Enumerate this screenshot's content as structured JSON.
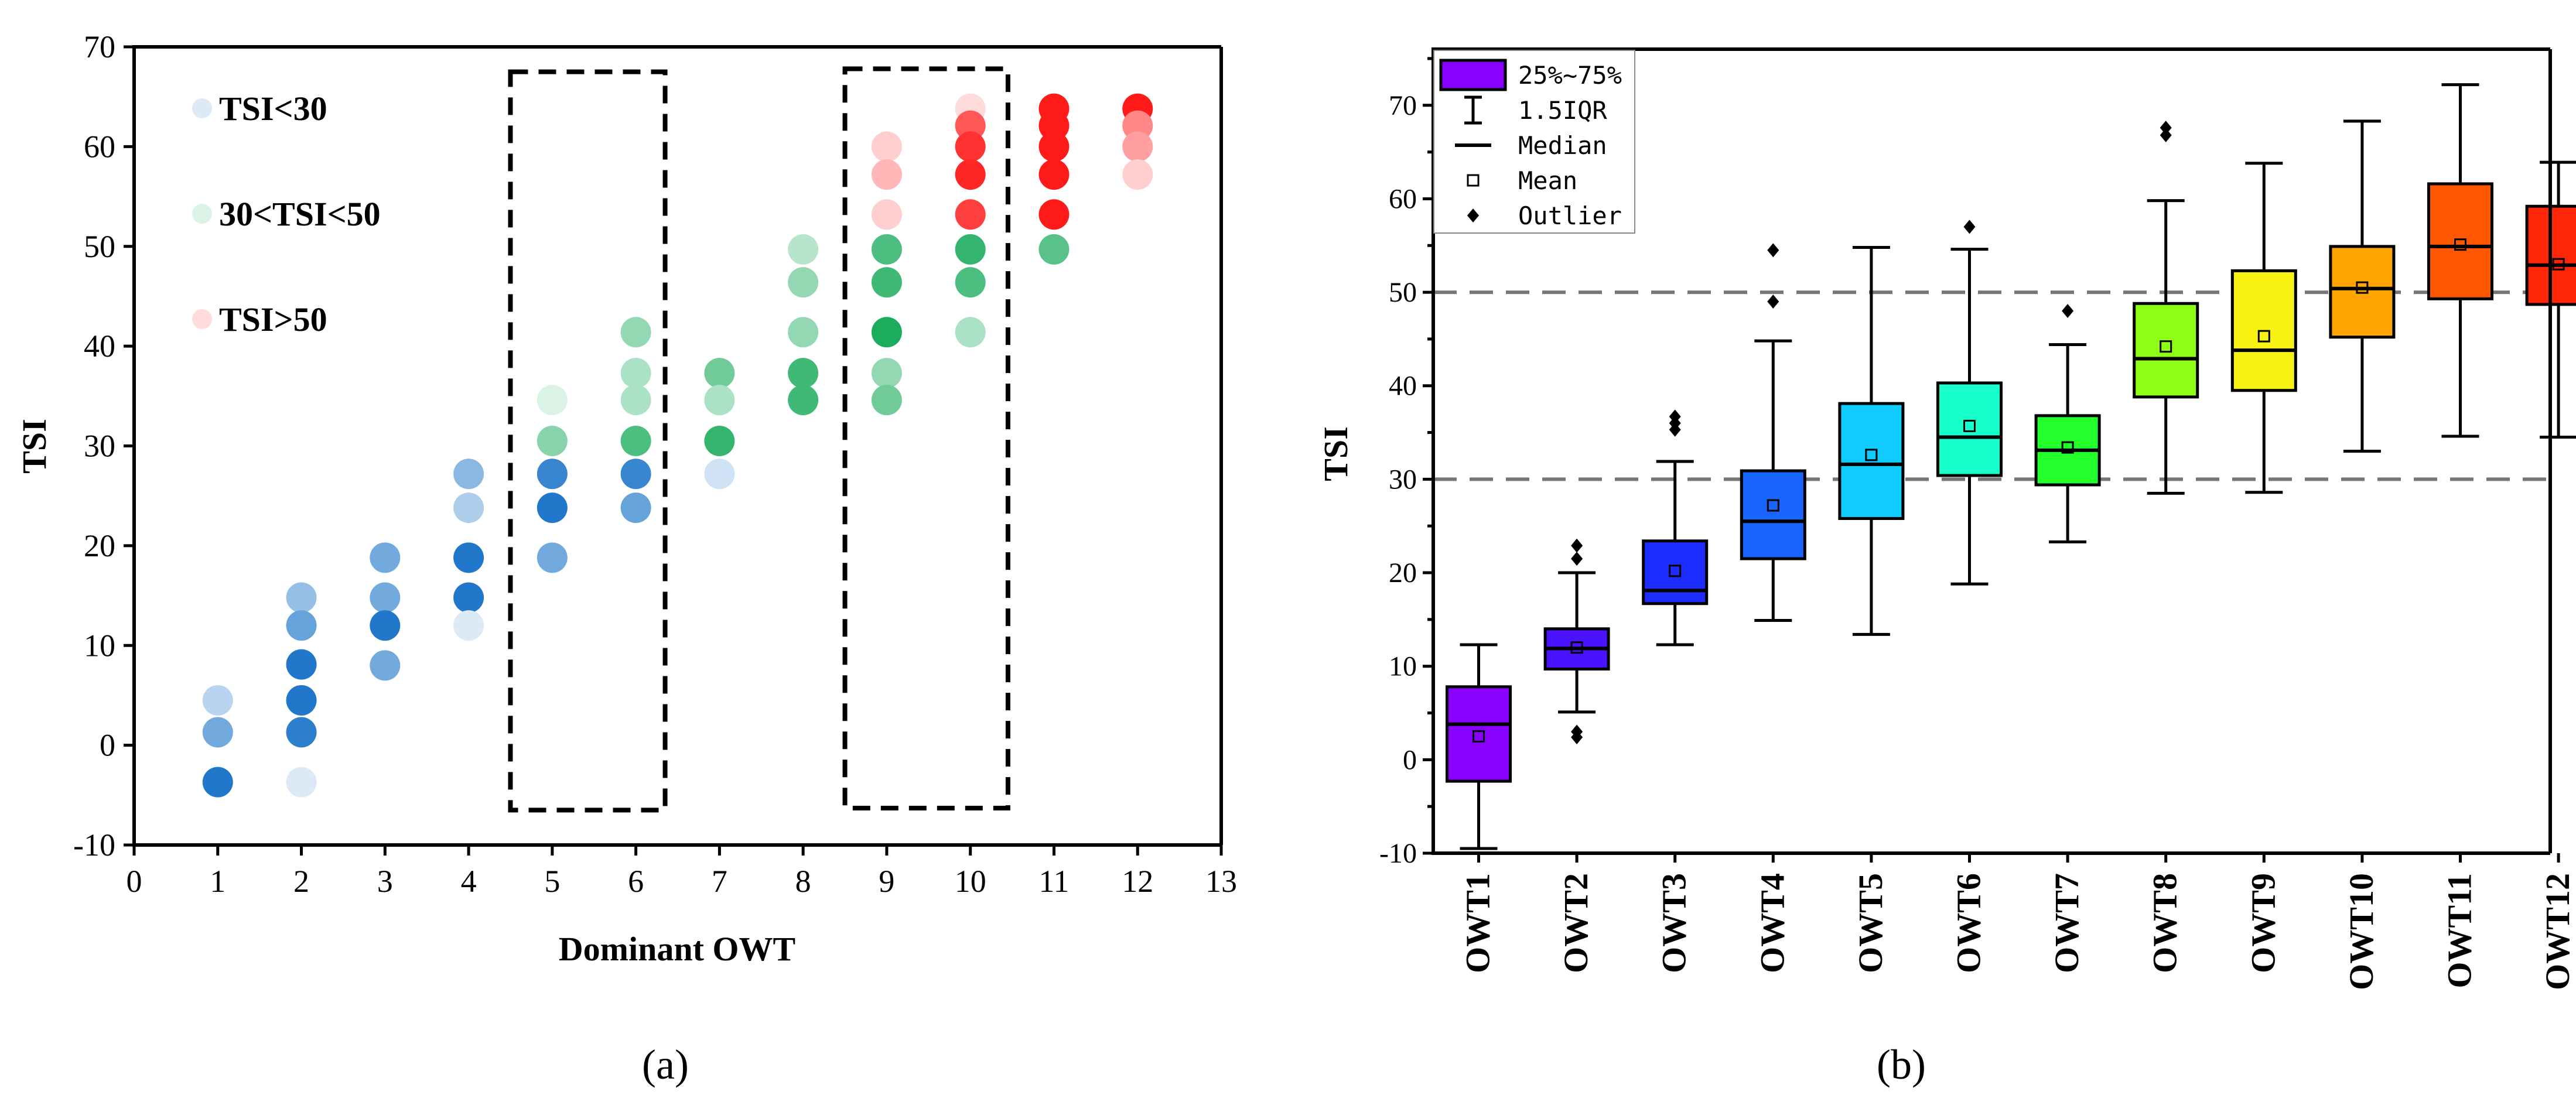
{
  "chart_data": [
    {
      "type": "scatter",
      "panel_label": "(a)",
      "xlabel": "Dominant OWT",
      "ylabel": "TSI",
      "xlim": [
        0,
        13
      ],
      "ylim": [
        -10,
        70
      ],
      "xticks": [
        0,
        1,
        2,
        3,
        4,
        5,
        6,
        7,
        8,
        9,
        10,
        11,
        12,
        13
      ],
      "yticks": [
        -10,
        0,
        10,
        20,
        30,
        40,
        50,
        60,
        70
      ],
      "legend": [
        "TSI<30",
        "30<TSI<50",
        "TSI>50"
      ],
      "legend_position": "top-left",
      "highlight_boxes": [
        {
          "x_range": [
            4.5,
            6.35
          ],
          "y_range": [
            -6.5,
            67.5
          ]
        },
        {
          "x_range": [
            8.5,
            10.45
          ],
          "y_range": [
            -6.3,
            67.8
          ]
        }
      ],
      "points": [
        {
          "x": 1,
          "y": 4.5,
          "cls": "low",
          "shade": 0.3
        },
        {
          "x": 1,
          "y": 1.3,
          "cls": "low",
          "shade": 0.6
        },
        {
          "x": 1,
          "y": -3.7,
          "cls": "low",
          "shade": 0.95
        },
        {
          "x": 2,
          "y": 14.8,
          "cls": "low",
          "shade": 0.45
        },
        {
          "x": 2,
          "y": 12.0,
          "cls": "low",
          "shade": 0.65
        },
        {
          "x": 2,
          "y": 8.1,
          "cls": "low",
          "shade": 0.95
        },
        {
          "x": 2,
          "y": 4.5,
          "cls": "low",
          "shade": 0.95
        },
        {
          "x": 2,
          "y": 1.3,
          "cls": "low",
          "shade": 0.9
        },
        {
          "x": 2,
          "y": -3.7,
          "cls": "low",
          "shade": 0.15
        },
        {
          "x": 3,
          "y": 18.8,
          "cls": "low",
          "shade": 0.6
        },
        {
          "x": 3,
          "y": 14.8,
          "cls": "low",
          "shade": 0.6
        },
        {
          "x": 3,
          "y": 12.0,
          "cls": "low",
          "shade": 0.95
        },
        {
          "x": 3,
          "y": 8.0,
          "cls": "low",
          "shade": 0.6
        },
        {
          "x": 4,
          "y": 27.2,
          "cls": "low",
          "shade": 0.5
        },
        {
          "x": 4,
          "y": 23.8,
          "cls": "low",
          "shade": 0.35
        },
        {
          "x": 4,
          "y": 18.8,
          "cls": "low",
          "shade": 0.95
        },
        {
          "x": 4,
          "y": 14.8,
          "cls": "low",
          "shade": 0.95
        },
        {
          "x": 4,
          "y": 12.0,
          "cls": "low",
          "shade": 0.15
        },
        {
          "x": 5,
          "y": 34.6,
          "cls": "mid",
          "shade": 0.15
        },
        {
          "x": 5,
          "y": 30.5,
          "cls": "mid",
          "shade": 0.5
        },
        {
          "x": 5,
          "y": 27.2,
          "cls": "low",
          "shade": 0.85
        },
        {
          "x": 5,
          "y": 23.8,
          "cls": "low",
          "shade": 0.95
        },
        {
          "x": 5,
          "y": 18.8,
          "cls": "low",
          "shade": 0.6
        },
        {
          "x": 6,
          "y": 41.4,
          "cls": "mid",
          "shade": 0.45
        },
        {
          "x": 6,
          "y": 37.3,
          "cls": "mid",
          "shade": 0.35
        },
        {
          "x": 6,
          "y": 34.6,
          "cls": "mid",
          "shade": 0.35
        },
        {
          "x": 6,
          "y": 30.5,
          "cls": "mid",
          "shade": 0.75
        },
        {
          "x": 6,
          "y": 27.2,
          "cls": "low",
          "shade": 0.85
        },
        {
          "x": 6,
          "y": 23.8,
          "cls": "low",
          "shade": 0.65
        },
        {
          "x": 7,
          "y": 37.3,
          "cls": "mid",
          "shade": 0.6
        },
        {
          "x": 7,
          "y": 34.6,
          "cls": "mid",
          "shade": 0.35
        },
        {
          "x": 7,
          "y": 30.5,
          "cls": "mid",
          "shade": 0.85
        },
        {
          "x": 7,
          "y": 27.2,
          "cls": "low",
          "shade": 0.2
        },
        {
          "x": 8,
          "y": 49.7,
          "cls": "mid",
          "shade": 0.3
        },
        {
          "x": 8,
          "y": 46.4,
          "cls": "mid",
          "shade": 0.45
        },
        {
          "x": 8,
          "y": 41.4,
          "cls": "mid",
          "shade": 0.45
        },
        {
          "x": 8,
          "y": 37.3,
          "cls": "mid",
          "shade": 0.8
        },
        {
          "x": 8,
          "y": 34.6,
          "cls": "mid",
          "shade": 0.8
        },
        {
          "x": 9,
          "y": 60.0,
          "cls": "high",
          "shade": 0.2
        },
        {
          "x": 9,
          "y": 57.2,
          "cls": "high",
          "shade": 0.3
        },
        {
          "x": 9,
          "y": 53.2,
          "cls": "high",
          "shade": 0.2
        },
        {
          "x": 9,
          "y": 49.7,
          "cls": "mid",
          "shade": 0.75
        },
        {
          "x": 9,
          "y": 46.4,
          "cls": "mid",
          "shade": 0.8
        },
        {
          "x": 9,
          "y": 41.4,
          "cls": "mid",
          "shade": 0.95
        },
        {
          "x": 9,
          "y": 37.3,
          "cls": "mid",
          "shade": 0.45
        },
        {
          "x": 9,
          "y": 34.6,
          "cls": "mid",
          "shade": 0.6
        },
        {
          "x": 10,
          "y": 63.8,
          "cls": "high",
          "shade": 0.15
        },
        {
          "x": 10,
          "y": 62.1,
          "cls": "high",
          "shade": 0.7
        },
        {
          "x": 10,
          "y": 60.0,
          "cls": "high",
          "shade": 0.85
        },
        {
          "x": 10,
          "y": 57.2,
          "cls": "high",
          "shade": 0.9
        },
        {
          "x": 10,
          "y": 53.2,
          "cls": "high",
          "shade": 0.8
        },
        {
          "x": 10,
          "y": 49.7,
          "cls": "mid",
          "shade": 0.85
        },
        {
          "x": 10,
          "y": 46.4,
          "cls": "mid",
          "shade": 0.75
        },
        {
          "x": 10,
          "y": 41.4,
          "cls": "mid",
          "shade": 0.35
        },
        {
          "x": 11,
          "y": 63.8,
          "cls": "high",
          "shade": 0.95
        },
        {
          "x": 11,
          "y": 62.1,
          "cls": "high",
          "shade": 0.95
        },
        {
          "x": 11,
          "y": 60.0,
          "cls": "high",
          "shade": 0.95
        },
        {
          "x": 11,
          "y": 57.2,
          "cls": "high",
          "shade": 0.95
        },
        {
          "x": 11,
          "y": 53.2,
          "cls": "high",
          "shade": 0.95
        },
        {
          "x": 11,
          "y": 49.7,
          "cls": "mid",
          "shade": 0.7
        },
        {
          "x": 12,
          "y": 63.8,
          "cls": "high",
          "shade": 0.95
        },
        {
          "x": 12,
          "y": 62.1,
          "cls": "high",
          "shade": 0.5
        },
        {
          "x": 12,
          "y": 60.0,
          "cls": "high",
          "shade": 0.4
        },
        {
          "x": 12,
          "y": 57.2,
          "cls": "high",
          "shade": 0.2
        }
      ]
    },
    {
      "type": "box",
      "panel_label": "(b)",
      "xlabel": "",
      "ylabel": "TSI",
      "ylim": [
        -10,
        76
      ],
      "yticks": [
        -10,
        0,
        10,
        20,
        30,
        40,
        50,
        60,
        70
      ],
      "reference_lines": [
        30,
        50
      ],
      "legend": [
        "25%~75%",
        "1.5IQR",
        "Median",
        "Mean",
        "Outlier"
      ],
      "legend_position": "top-left",
      "categories": [
        "OWT1",
        "OWT2",
        "OWT3",
        "OWT4",
        "OWT5",
        "OWT6",
        "OWT7",
        "OWT8",
        "OWT9",
        "OWT10",
        "OWT11",
        "OWT12"
      ],
      "boxes": [
        {
          "whisker_low": -9.5,
          "q1": -2.3,
          "median": 3.8,
          "q3": 7.8,
          "whisker_high": 12.3,
          "mean": 2.5,
          "outliers": [],
          "color": "#8a00ff"
        },
        {
          "whisker_low": 5.1,
          "q1": 9.7,
          "median": 11.9,
          "q3": 14.0,
          "whisker_high": 20.0,
          "mean": 12.0,
          "outliers": [
            2.4,
            3.0,
            21.5,
            22.9
          ],
          "color": "#4a12ff"
        },
        {
          "whisker_low": 12.3,
          "q1": 16.7,
          "median": 18.1,
          "q3": 23.4,
          "whisker_high": 31.9,
          "mean": 20.2,
          "outliers": [
            35.3,
            36.0,
            36.7
          ],
          "color": "#1d2cff"
        },
        {
          "whisker_low": 14.9,
          "q1": 21.5,
          "median": 25.5,
          "q3": 30.9,
          "whisker_high": 44.8,
          "mean": 27.2,
          "outliers": [
            49.0,
            54.5
          ],
          "color": "#1866ff"
        },
        {
          "whisker_low": 13.4,
          "q1": 25.8,
          "median": 31.6,
          "q3": 38.1,
          "whisker_high": 54.8,
          "mean": 32.6,
          "outliers": [],
          "color": "#10cbff"
        },
        {
          "whisker_low": 18.8,
          "q1": 30.4,
          "median": 34.5,
          "q3": 40.3,
          "whisker_high": 54.6,
          "mean": 35.7,
          "outliers": [
            57.0
          ],
          "color": "#17ffcb"
        },
        {
          "whisker_low": 23.3,
          "q1": 29.4,
          "median": 33.1,
          "q3": 36.8,
          "whisker_high": 44.4,
          "mean": 33.4,
          "outliers": [
            48.0
          ],
          "color": "#22ff2a"
        },
        {
          "whisker_low": 28.5,
          "q1": 38.8,
          "median": 42.9,
          "q3": 48.8,
          "whisker_high": 59.8,
          "mean": 44.2,
          "outliers": [
            66.8,
            67.6
          ],
          "color": "#8dff14"
        },
        {
          "whisker_low": 28.6,
          "q1": 39.5,
          "median": 43.8,
          "q3": 52.3,
          "whisker_high": 63.8,
          "mean": 45.3,
          "outliers": [],
          "color": "#f7f211"
        },
        {
          "whisker_low": 33.0,
          "q1": 45.2,
          "median": 50.4,
          "q3": 54.9,
          "whisker_high": 68.3,
          "mean": 50.5,
          "outliers": [],
          "color": "#ffa400"
        },
        {
          "whisker_low": 34.6,
          "q1": 49.3,
          "median": 54.9,
          "q3": 61.6,
          "whisker_high": 72.2,
          "mean": 55.1,
          "outliers": [],
          "color": "#ff5700"
        },
        {
          "whisker_low": 34.5,
          "q1": 48.7,
          "median": 52.9,
          "q3": 59.2,
          "whisker_high": 63.9,
          "mean": 53.0,
          "outliers": [],
          "color": "#ff2608"
        }
      ]
    }
  ],
  "colors": {
    "low": "#1571c7",
    "mid": "#10a855",
    "high": "#ff0e0e"
  }
}
